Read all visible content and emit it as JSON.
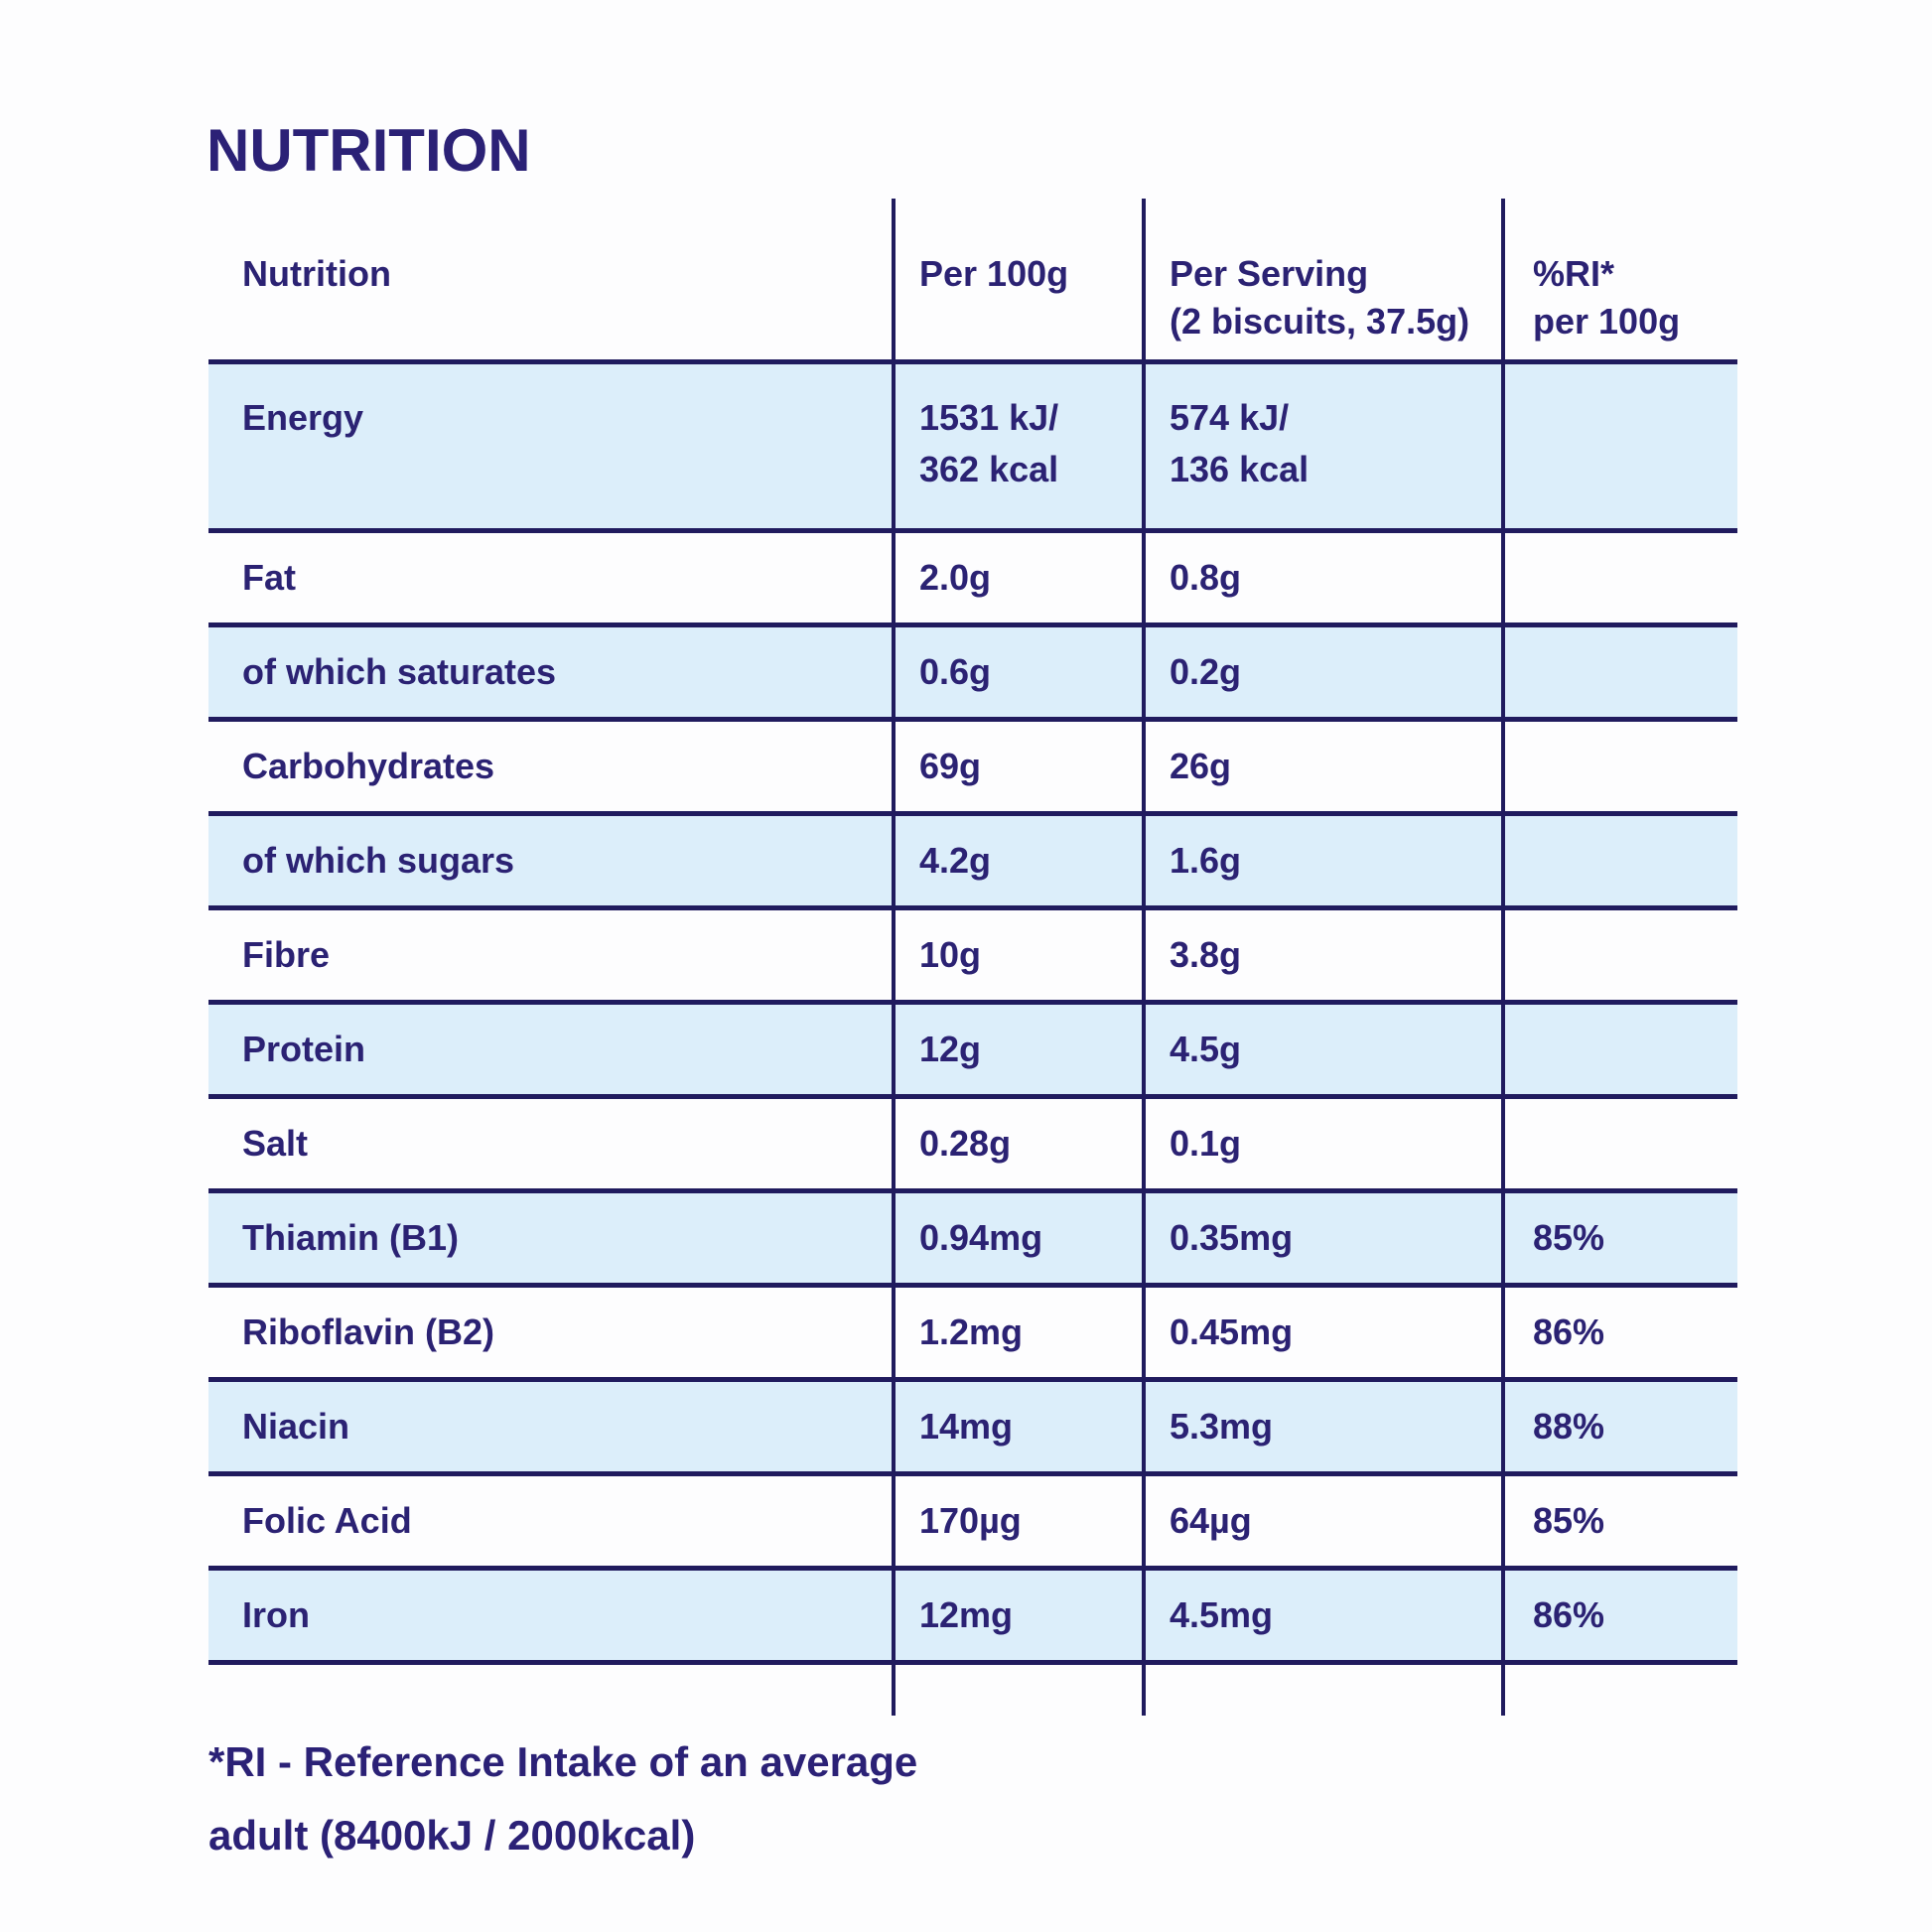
{
  "page": {
    "title": "NUTRITION",
    "footnote_line1": "*RI - Reference Intake of an average",
    "footnote_line2": "adult (8400kJ / 2000kcal)"
  },
  "colors": {
    "text_navy": "#2b2273",
    "line_navy": "#201b5e",
    "row_shaded_blue": "#dceefa",
    "background": "#fdfdfe"
  },
  "table": {
    "columns": [
      {
        "label": "Nutrition"
      },
      {
        "label": "Per 100g"
      },
      {
        "label": "Per Serving\n(2 biscuits, 37.5g)"
      },
      {
        "label": "%RI*\nper 100g"
      }
    ],
    "rows": [
      {
        "label": "Energy",
        "per_100g": "1531 kJ/\n362 kcal",
        "per_serving": "574 kJ/\n136 kcal",
        "ri_per_100g": ""
      },
      {
        "label": "Fat",
        "per_100g": "2.0g",
        "per_serving": "0.8g",
        "ri_per_100g": ""
      },
      {
        "label": "of which saturates",
        "per_100g": "0.6g",
        "per_serving": "0.2g",
        "ri_per_100g": ""
      },
      {
        "label": "Carbohydrates",
        "per_100g": "69g",
        "per_serving": "26g",
        "ri_per_100g": ""
      },
      {
        "label": "of which sugars",
        "per_100g": "4.2g",
        "per_serving": "1.6g",
        "ri_per_100g": ""
      },
      {
        "label": "Fibre",
        "per_100g": "10g",
        "per_serving": "3.8g",
        "ri_per_100g": ""
      },
      {
        "label": "Protein",
        "per_100g": "12g",
        "per_serving": "4.5g",
        "ri_per_100g": ""
      },
      {
        "label": "Salt",
        "per_100g": "0.28g",
        "per_serving": "0.1g",
        "ri_per_100g": ""
      },
      {
        "label": "Thiamin (B1)",
        "per_100g": "0.94mg",
        "per_serving": "0.35mg",
        "ri_per_100g": "85%"
      },
      {
        "label": "Riboflavin (B2)",
        "per_100g": "1.2mg",
        "per_serving": "0.45mg",
        "ri_per_100g": "86%"
      },
      {
        "label": "Niacin",
        "per_100g": "14mg",
        "per_serving": "5.3mg",
        "ri_per_100g": "88%"
      },
      {
        "label": "Folic Acid",
        "per_100g": "170µg",
        "per_serving": "64µg",
        "ri_per_100g": "85%"
      },
      {
        "label": "Iron",
        "per_100g": "12mg",
        "per_serving": "4.5mg",
        "ri_per_100g": "86%"
      }
    ]
  }
}
